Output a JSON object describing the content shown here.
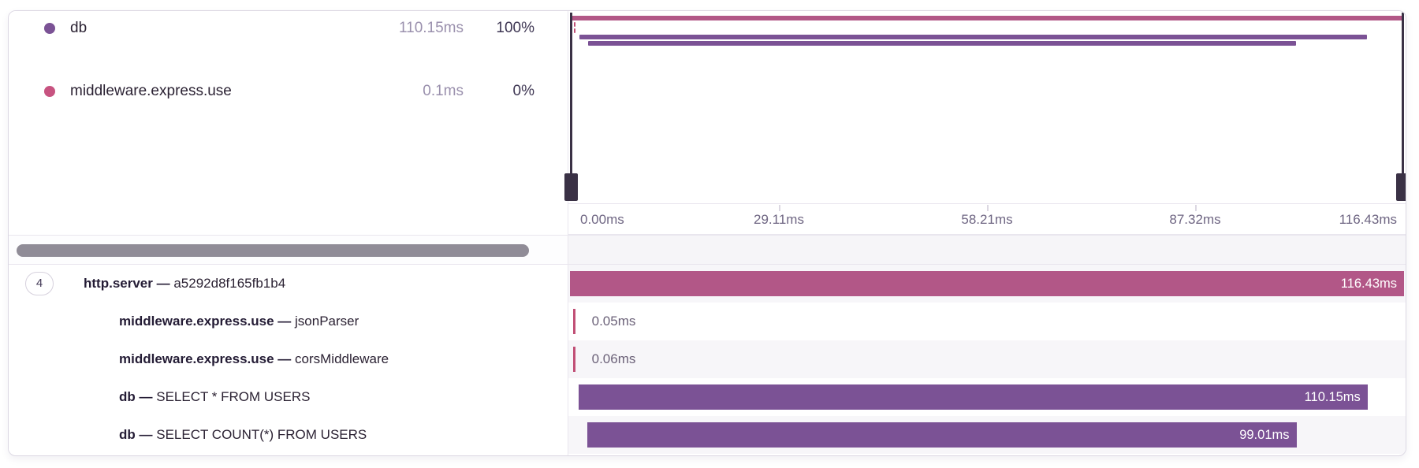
{
  "legend": {
    "items": [
      {
        "label": "db",
        "duration": "110.15ms",
        "percent": "100%",
        "color": "db"
      },
      {
        "label": "middleware.express.use",
        "duration": "0.1ms",
        "percent": "0%",
        "color": "middleware"
      }
    ]
  },
  "timeline": {
    "total_ms": 116.43,
    "axis_labels": [
      "0.00ms",
      "29.11ms",
      "58.21ms",
      "87.32ms",
      "116.43ms"
    ]
  },
  "spans": [
    {
      "op": "http.server",
      "separator": "—",
      "description": "a5292d8f165fb1b4",
      "child_count": "4",
      "start_ms": 0,
      "duration_ms": 116.43,
      "duration_label": "116.43ms",
      "color": "http",
      "label_inside": true
    },
    {
      "op": "middleware.express.use",
      "separator": "—",
      "description": "jsonParser",
      "start_ms": 0.4,
      "duration_ms": 0.05,
      "duration_label": "0.05ms",
      "color": "tick",
      "label_inside": false
    },
    {
      "op": "middleware.express.use",
      "separator": "—",
      "description": "corsMiddleware",
      "start_ms": 0.4,
      "duration_ms": 0.06,
      "duration_label": "0.06ms",
      "color": "tick",
      "label_inside": false
    },
    {
      "op": "db",
      "separator": "—",
      "description": "SELECT * FROM USERS",
      "start_ms": 1.2,
      "duration_ms": 110.15,
      "duration_label": "110.15ms",
      "color": "db",
      "label_inside": true
    },
    {
      "op": "db",
      "separator": "—",
      "description": "SELECT COUNT(*) FROM USERS",
      "start_ms": 2.4,
      "duration_ms": 99.01,
      "duration_label": "99.01ms",
      "color": "db",
      "label_inside": true
    }
  ],
  "colors": {
    "http": "#b25787",
    "db": "#7b5295",
    "middleware": "#c75380",
    "tick": "#c14f76"
  }
}
